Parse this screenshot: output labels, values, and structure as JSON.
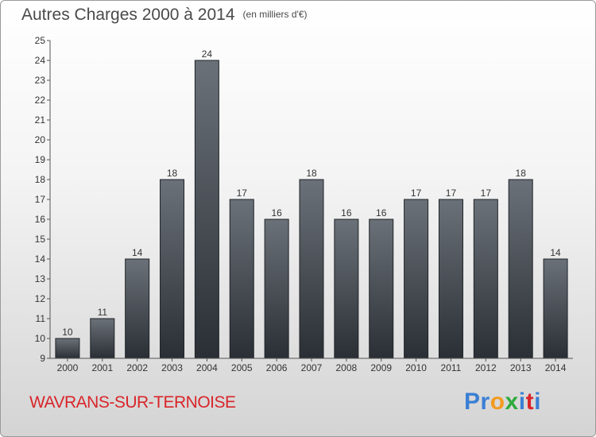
{
  "header": {
    "title": "Autres Charges 2000 à 2014",
    "unit": "(en milliers d'€)"
  },
  "footer": {
    "commune": "WAVRANS-SUR-TERNOISE",
    "logo": [
      "P",
      "r",
      "o",
      "x",
      "i",
      "t",
      "i"
    ],
    "logo_colors": [
      "#3b7fd4",
      "#3b7fd4",
      "#f39a1e",
      "#2eaa3c",
      "#3b7fd4",
      "#d9252a",
      "#3b7fd4"
    ]
  },
  "colors": {
    "bar_top": "#6b7178",
    "bar_bottom": "#2a2f35",
    "commune": "#d9252a"
  },
  "chart_data": {
    "type": "bar",
    "title": "Autres Charges 2000 à 2014",
    "subtitle": "(en milliers d'€)",
    "categories": [
      "2000",
      "2001",
      "2002",
      "2003",
      "2004",
      "2005",
      "2006",
      "2007",
      "2008",
      "2009",
      "2010",
      "2011",
      "2012",
      "2013",
      "2014"
    ],
    "values": [
      10,
      11,
      14,
      18,
      24,
      17,
      16,
      18,
      16,
      16,
      17,
      17,
      17,
      18,
      14
    ],
    "ylim": [
      9,
      25
    ],
    "yticks": [
      9,
      10,
      11,
      12,
      13,
      14,
      15,
      16,
      17,
      18,
      19,
      20,
      21,
      22,
      23,
      24,
      25
    ],
    "grid": false,
    "legend": "none"
  }
}
